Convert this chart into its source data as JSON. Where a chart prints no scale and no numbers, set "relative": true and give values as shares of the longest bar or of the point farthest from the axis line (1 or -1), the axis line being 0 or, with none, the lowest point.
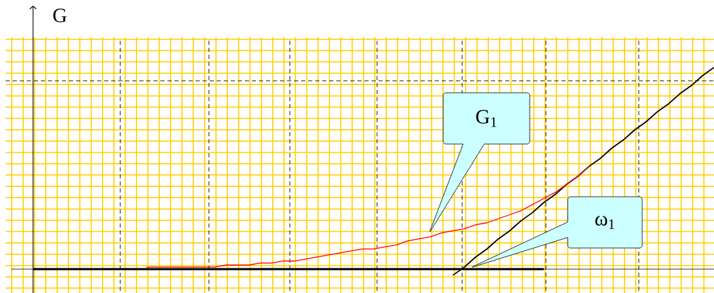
{
  "chart_data": {
    "type": "line",
    "ylabel": "G",
    "relative": true,
    "grid": true,
    "categories": [
      null,
      null,
      null,
      null,
      null,
      null,
      null,
      null,
      null,
      null,
      null,
      null,
      null,
      null,
      null,
      null,
      null,
      null,
      null,
      null,
      null,
      null,
      null,
      null,
      null,
      null,
      null,
      null,
      null,
      null,
      null,
      null,
      null,
      null,
      null,
      null,
      null,
      null,
      null,
      null,
      null,
      null,
      null,
      null,
      null,
      null,
      null,
      null,
      null,
      null,
      null,
      null,
      null,
      null,
      null,
      null,
      null,
      null,
      null,
      null,
      null
    ],
    "series": [
      {
        "color": "#000000",
        "values": [
          0,
          0,
          0,
          0,
          0,
          0,
          0,
          0,
          0,
          0,
          0,
          0,
          0,
          0,
          0,
          0,
          0,
          0,
          0,
          0,
          0,
          0,
          0,
          0,
          0,
          0,
          0,
          0,
          0,
          0,
          0,
          0,
          0,
          0,
          0,
          0,
          0,
          0,
          0,
          0,
          0,
          0,
          0,
          0,
          0,
          0,
          null,
          null,
          null,
          null,
          null,
          null,
          null,
          null,
          null,
          null,
          null,
          null,
          null,
          null,
          null
        ]
      },
      {
        "color": "#000000",
        "values": [
          null,
          null,
          null,
          null,
          null,
          null,
          null,
          null,
          null,
          null,
          null,
          null,
          null,
          null,
          null,
          null,
          null,
          null,
          null,
          null,
          null,
          null,
          null,
          null,
          null,
          null,
          null,
          null,
          null,
          null,
          null,
          null,
          null,
          null,
          null,
          null,
          null,
          -0.03,
          0.01,
          0.06,
          0.1,
          0.15,
          0.19,
          0.24,
          0.28,
          0.33,
          0.37,
          0.42,
          0.46,
          0.51,
          0.55,
          0.6,
          0.64,
          0.69,
          0.73,
          0.78,
          0.82,
          0.87,
          0.91,
          0.96,
          1.0
        ]
      },
      {
        "name": "G$_{1}$",
        "color": "#ff0000",
        "values": [
          null,
          null,
          null,
          null,
          null,
          null,
          null,
          null,
          null,
          null,
          0.01,
          0.01,
          0.01,
          0.01,
          0.01,
          0.01,
          0.01,
          0.02,
          0.02,
          0.02,
          0.03,
          0.03,
          0.04,
          0.04,
          0.05,
          0.06,
          0.07,
          0.08,
          0.09,
          0.1,
          0.1,
          0.11,
          0.12,
          0.14,
          0.15,
          0.16,
          0.18,
          0.19,
          0.2,
          0.22,
          0.23,
          0.25,
          0.27,
          0.29,
          0.32,
          0.35,
          0.38,
          0.42,
          0.46,
          0.51,
          null,
          null,
          null,
          null,
          null,
          null,
          null,
          null,
          null,
          null,
          null
        ]
      }
    ],
    "annotations": [
      "ω$_{1}$"
    ]
  }
}
